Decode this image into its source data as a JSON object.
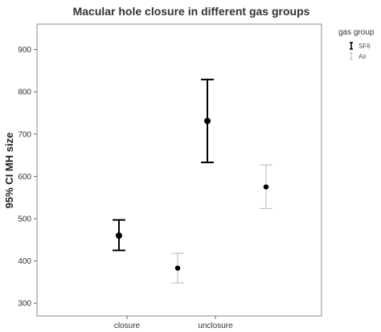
{
  "chart_data": {
    "type": "errorbar",
    "title": "Macular hole closure in different gas groups",
    "xlabel": "",
    "ylabel": "95% CI MH size",
    "categories": [
      "closure",
      "unclosure"
    ],
    "ylim": [
      270,
      960
    ],
    "yticks": [
      300,
      400,
      500,
      600,
      700,
      800,
      900
    ],
    "grid": false,
    "legend": {
      "title": "gas group",
      "position": "right"
    },
    "series": [
      {
        "name": "SF6",
        "color": "#000000",
        "values": [
          460,
          731
        ],
        "lower": [
          425,
          633
        ],
        "upper": [
          497,
          829
        ]
      },
      {
        "name": "Air",
        "color": "#b8b8b8",
        "values": [
          383,
          575
        ],
        "lower": [
          348,
          524
        ],
        "upper": [
          418,
          627
        ]
      }
    ]
  }
}
